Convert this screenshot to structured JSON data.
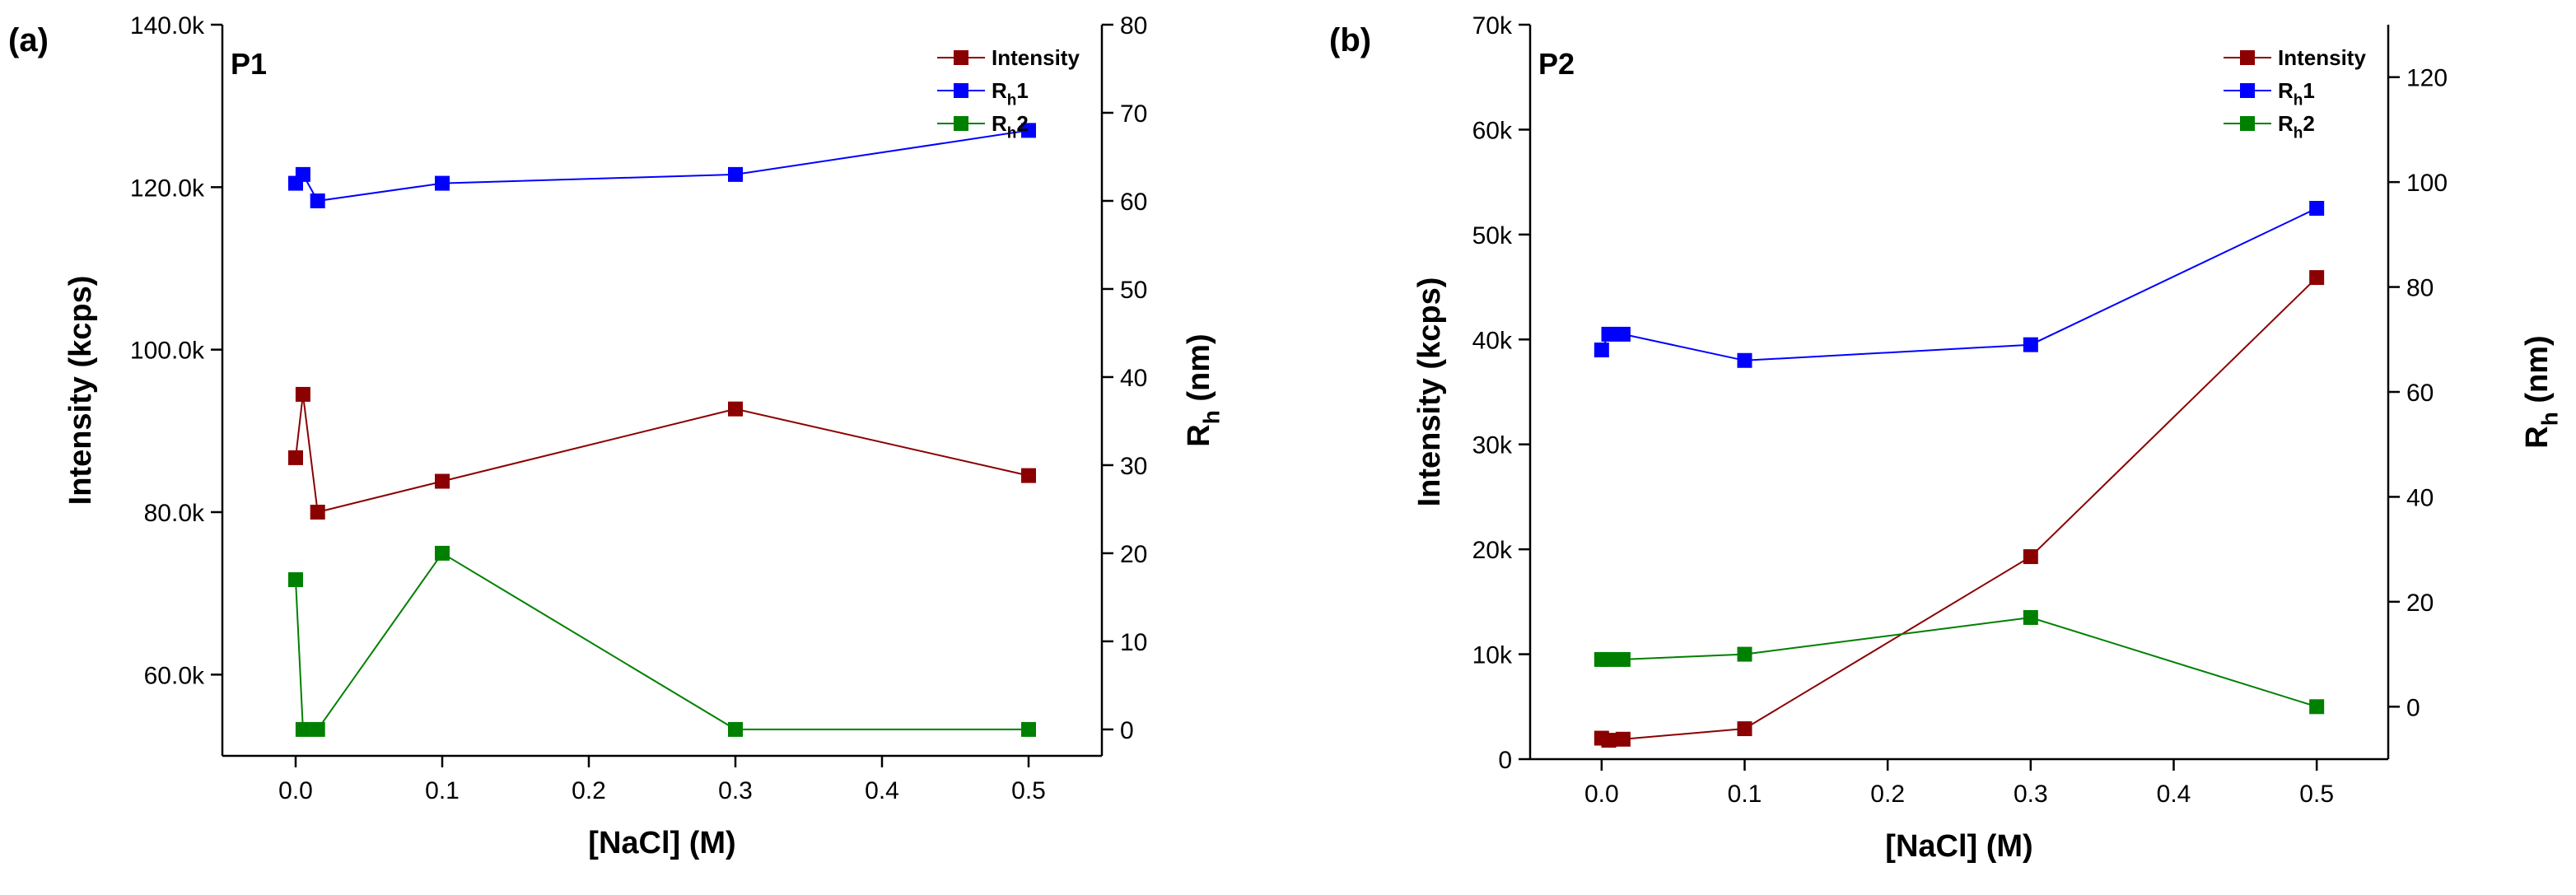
{
  "colors": {
    "intensity": "#8B0000",
    "rh1": "#0000FF",
    "rh2": "#008000",
    "axis": "#000000"
  },
  "chart_data": [
    {
      "type": "line",
      "panel_label": "(a)",
      "inset_label": "P1",
      "xlabel": "[NaCl] (M)",
      "ylabel_left": "Intensity (kcps)",
      "ylabel_right": {
        "main": "R",
        "sub": "h",
        "suffix": " (nm)"
      },
      "xlim": [
        -0.05,
        0.55
      ],
      "ylim_left": [
        50000,
        140000
      ],
      "ylim_right": [
        -3,
        80
      ],
      "x_ticks": [
        0.0,
        0.1,
        0.2,
        0.3,
        0.4,
        0.5
      ],
      "x_tick_labels": [
        "0.0",
        "0.1",
        "0.2",
        "0.3",
        "0.4",
        "0.5"
      ],
      "y_left_ticks": [
        60000,
        80000,
        100000,
        120000,
        140000
      ],
      "y_left_tick_labels": [
        "60.0k",
        "80.0k",
        "100.0k",
        "120.0k",
        "140.0k"
      ],
      "y_right_ticks": [
        0,
        10,
        20,
        30,
        40,
        50,
        60,
        70,
        80
      ],
      "y_right_tick_labels": [
        "0",
        "10",
        "20",
        "30",
        "40",
        "50",
        "60",
        "70",
        "80"
      ],
      "legend_position": "top-right",
      "series": [
        {
          "name": "Intensity",
          "label_main": "Intensity",
          "label_sub": "",
          "label_suffix": "",
          "color_key": "intensity",
          "axis": "left",
          "x": [
            0.0,
            0.005,
            0.015,
            0.1,
            0.3,
            0.5
          ],
          "y": [
            86700,
            94500,
            80000,
            83800,
            92700,
            84500
          ]
        },
        {
          "name": "Rh1",
          "label_main": "R",
          "label_sub": "h",
          "label_suffix": "1",
          "color_key": "rh1",
          "axis": "right",
          "x": [
            0.0,
            0.005,
            0.015,
            0.1,
            0.3,
            0.5
          ],
          "y": [
            62,
            63,
            60,
            62,
            63,
            68
          ]
        },
        {
          "name": "Rh2",
          "label_main": "R",
          "label_sub": "h",
          "label_suffix": "2",
          "color_key": "rh2",
          "axis": "right",
          "x": [
            0.0,
            0.005,
            0.015,
            0.1,
            0.3,
            0.5
          ],
          "y": [
            17,
            0,
            0,
            20,
            0,
            0
          ]
        }
      ]
    },
    {
      "type": "line",
      "panel_label": "(b)",
      "inset_label": "P2",
      "xlabel": "[NaCl] (M)",
      "ylabel_left": "Intensity (kcps)",
      "ylabel_right": {
        "main": "R",
        "sub": "h",
        "suffix": " (nm)"
      },
      "xlim": [
        -0.05,
        0.55
      ],
      "ylim_left": [
        0,
        70000
      ],
      "ylim_right": [
        -10,
        130
      ],
      "x_ticks": [
        0.0,
        0.1,
        0.2,
        0.3,
        0.4,
        0.5
      ],
      "x_tick_labels": [
        "0.0",
        "0.1",
        "0.2",
        "0.3",
        "0.4",
        "0.5"
      ],
      "y_left_ticks": [
        0,
        10000,
        20000,
        30000,
        40000,
        50000,
        60000,
        70000
      ],
      "y_left_tick_labels": [
        "0",
        "10k",
        "20k",
        "30k",
        "40k",
        "50k",
        "60k",
        "70k"
      ],
      "y_right_ticks": [
        0,
        20,
        40,
        60,
        80,
        100,
        120
      ],
      "y_right_tick_labels": [
        "0",
        "20",
        "40",
        "60",
        "80",
        "100",
        "120"
      ],
      "legend_position": "top-right",
      "series": [
        {
          "name": "Intensity",
          "label_main": "Intensity",
          "label_sub": "",
          "label_suffix": "",
          "color_key": "intensity",
          "axis": "left",
          "x": [
            0.0,
            0.005,
            0.015,
            0.1,
            0.3,
            0.5
          ],
          "y": [
            2000,
            1800,
            1900,
            2900,
            19300,
            45900
          ]
        },
        {
          "name": "Rh1",
          "label_main": "R",
          "label_sub": "h",
          "label_suffix": "1",
          "color_key": "rh1",
          "axis": "right",
          "x": [
            0.0,
            0.005,
            0.015,
            0.1,
            0.3,
            0.5
          ],
          "y": [
            68,
            71,
            71,
            66,
            69,
            95
          ]
        },
        {
          "name": "Rh2",
          "label_main": "R",
          "label_sub": "h",
          "label_suffix": "2",
          "color_key": "rh2",
          "axis": "right",
          "x": [
            0.0,
            0.005,
            0.015,
            0.1,
            0.3,
            0.5
          ],
          "y": [
            9,
            9,
            9,
            10,
            17,
            0
          ]
        }
      ]
    }
  ]
}
